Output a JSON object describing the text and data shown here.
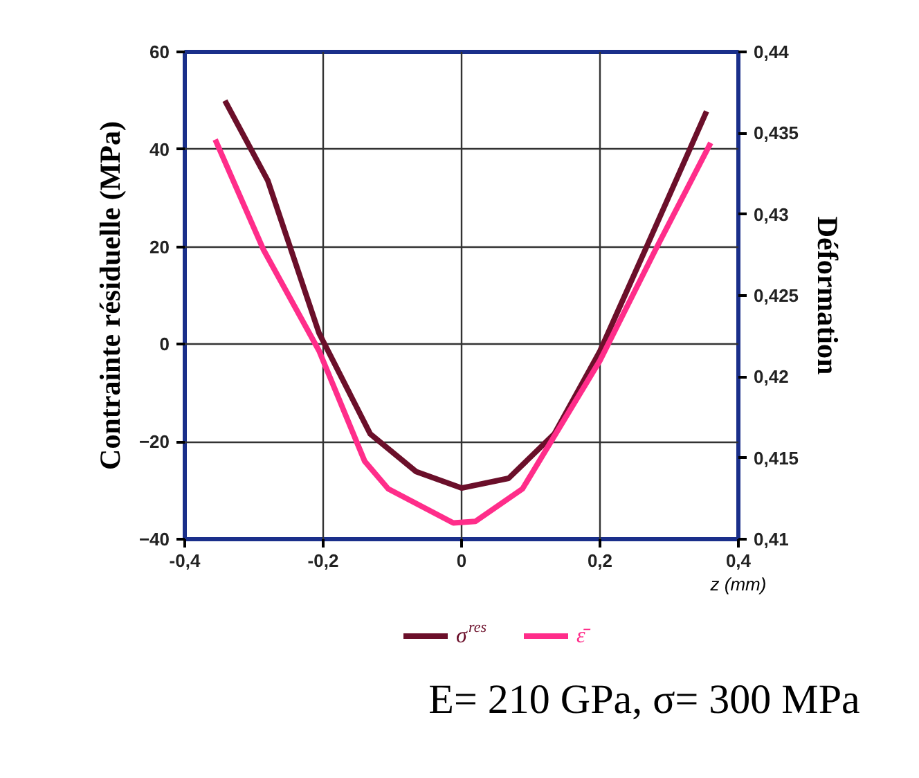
{
  "chart_data": {
    "type": "line",
    "title": "E= 210 GPa, σ= 300 MPa",
    "xlabel": "z (mm)",
    "ylabel": "Contrainte résiduelle (MPa)",
    "y2label": "Déformation",
    "xlim": [
      -0.4,
      0.4
    ],
    "xticks": [
      {
        "value": -0.4,
        "label": "-0,4"
      },
      {
        "value": -0.2,
        "label": "-0,2"
      },
      0,
      {
        "value": 0.2,
        "label": "0,2"
      },
      {
        "value": 0.4,
        "label": "0,4"
      }
    ],
    "ylim": [
      -40,
      60
    ],
    "yticks": [
      -40,
      -20,
      0,
      20,
      40,
      60
    ],
    "y2lim": [
      0.41,
      0.44
    ],
    "y2ticks": [
      {
        "value": 0.41,
        "label": "0,41"
      },
      {
        "value": 0.415,
        "label": "0,415"
      },
      {
        "value": 0.42,
        "label": "0,42"
      },
      {
        "value": 0.425,
        "label": "0,425"
      },
      {
        "value": 0.43,
        "label": "0,43"
      },
      {
        "value": 0.435,
        "label": "0,435"
      },
      {
        "value": 0.44,
        "label": "0,44"
      }
    ],
    "grid": true,
    "legend": "bottom",
    "line_style": "solid",
    "marker": "none",
    "series": [
      {
        "name": "σ$^{res}$",
        "color": "#6b0f2a",
        "x": [
          -0.342,
          -0.28,
          -0.206,
          -0.132,
          -0.066,
          0,
          0.068,
          0.134,
          0.2,
          0.268,
          0.354
        ],
        "values": [
          50,
          33.6,
          2.3,
          -18.4,
          -26.1,
          -29.5,
          -27.5,
          -18.4,
          -1.4,
          20.2,
          47.8
        ]
      },
      {
        "name": "ε̄",
        "color": "#ff2d8a",
        "axis": "y2",
        "x": [
          -0.356,
          -0.286,
          -0.206,
          -0.14,
          -0.106,
          -0.012,
          0.02,
          0.088,
          0.2,
          0.28,
          0.36
        ],
        "values": [
          0.4346,
          0.4278,
          0.4216,
          0.4148,
          0.4131,
          0.411,
          0.4111,
          0.4131,
          0.421,
          0.4278,
          0.4344
        ]
      }
    ]
  }
}
